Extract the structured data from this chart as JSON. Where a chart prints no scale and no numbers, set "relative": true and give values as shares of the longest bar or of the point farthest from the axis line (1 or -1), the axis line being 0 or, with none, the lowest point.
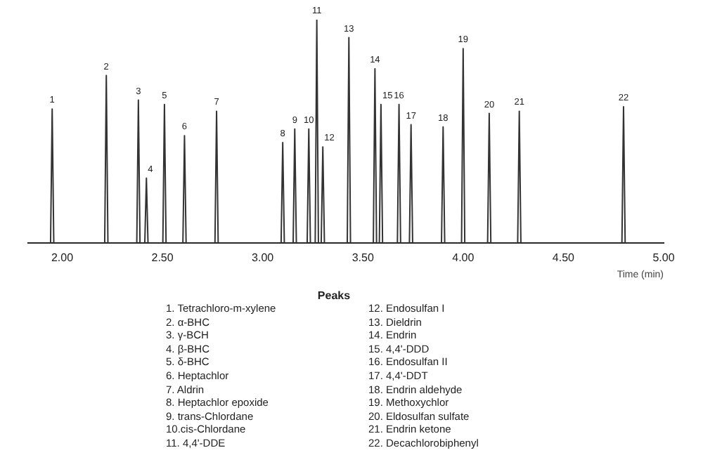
{
  "chart_data": {
    "type": "line",
    "xlabel": "Time (min)",
    "legend_title": "Peaks",
    "relative": true,
    "grid": false,
    "legend": false,
    "marker": "none",
    "color": "#333333",
    "xlim": [
      1.83,
      5.0
    ],
    "xticks": [
      {
        "value": 2,
        "label": "2.00"
      },
      {
        "value": 2.5,
        "label": "2.50"
      },
      {
        "value": 3,
        "label": "3.00"
      },
      {
        "value": 3.5,
        "label": "3.50"
      },
      {
        "value": 4,
        "label": "4.00"
      },
      {
        "value": 4.5,
        "label": "4.50"
      },
      {
        "value": 5,
        "label": "5.00"
      }
    ],
    "x": [
      1.83,
      1.942,
      1.95,
      1.958,
      2.212,
      2.22,
      2.228,
      2.372,
      2.38,
      2.388,
      2.412,
      2.42,
      2.428,
      2.502,
      2.51,
      2.518,
      2.602,
      2.61,
      2.618,
      2.762,
      2.77,
      2.778,
      3.092,
      3.1,
      3.108,
      3.152,
      3.16,
      3.168,
      3.222,
      3.23,
      3.238,
      3.262,
      3.27,
      3.278,
      3.292,
      3.3,
      3.308,
      3.422,
      3.43,
      3.438,
      3.552,
      3.56,
      3.568,
      3.582,
      3.59,
      3.598,
      3.672,
      3.68,
      3.688,
      3.732,
      3.74,
      3.748,
      3.892,
      3.9,
      3.908,
      3.992,
      4,
      4.008,
      4.122,
      4.13,
      4.138,
      4.272,
      4.28,
      4.288,
      4.792,
      4.8,
      4.808,
      5.0
    ],
    "values": [
      0,
      0,
      0.6,
      0,
      0,
      0.75,
      0,
      0,
      0.64,
      0,
      0,
      0.29,
      0,
      0,
      0.62,
      0,
      0,
      0.48,
      0,
      0,
      0.59,
      0,
      0,
      0.45,
      0,
      0,
      0.51,
      0,
      0,
      0.51,
      0,
      0,
      1,
      0,
      0,
      0.43,
      0,
      0,
      0.92,
      0,
      0,
      0.78,
      0,
      0,
      0.62,
      0,
      0,
      0.62,
      0,
      0,
      0.53,
      0,
      0,
      0.52,
      0,
      0,
      0.87,
      0,
      0,
      0.58,
      0,
      0,
      0.59,
      0,
      0,
      0.61,
      0,
      0
    ],
    "annotations": [
      {
        "text": "1",
        "x": 1.95,
        "y": 0.6
      },
      {
        "text": "2",
        "x": 2.22,
        "y": 0.75
      },
      {
        "text": "3",
        "x": 2.38,
        "y": 0.64
      },
      {
        "text": "4",
        "x": 2.42,
        "y": 0.29
      },
      {
        "text": "5",
        "x": 2.51,
        "y": 0.62
      },
      {
        "text": "6",
        "x": 2.61,
        "y": 0.48
      },
      {
        "text": "7",
        "x": 2.77,
        "y": 0.59
      },
      {
        "text": "8",
        "x": 3.1,
        "y": 0.45
      },
      {
        "text": "9",
        "x": 3.16,
        "y": 0.51
      },
      {
        "text": "10",
        "x": 3.23,
        "y": 0.51
      },
      {
        "text": "11",
        "x": 3.27,
        "y": 1
      },
      {
        "text": "12",
        "x": 3.3,
        "y": 0.43
      },
      {
        "text": "13",
        "x": 3.43,
        "y": 0.92
      },
      {
        "text": "14",
        "x": 3.56,
        "y": 0.78
      },
      {
        "text": "15",
        "x": 3.59,
        "y": 0.62
      },
      {
        "text": "16",
        "x": 3.68,
        "y": 0.62
      },
      {
        "text": "17",
        "x": 3.74,
        "y": 0.53
      },
      {
        "text": "18",
        "x": 3.9,
        "y": 0.52
      },
      {
        "text": "19",
        "x": 4,
        "y": 0.87
      },
      {
        "text": "20",
        "x": 4.13,
        "y": 0.58
      },
      {
        "text": "21",
        "x": 4.28,
        "y": 0.59
      },
      {
        "text": "22",
        "x": 4.8,
        "y": 0.61
      },
      "1. Tetrachloro-m-xylene",
      "2. α-BHC",
      "3. γ-BCH",
      "4. β-BHC",
      "5. δ-BHC",
      "6. Heptachlor",
      "7. Aldrin",
      "8. Heptachlor epoxide",
      "9. trans-Chlordane",
      "10.cis-Chlordane",
      "11. 4,4'-DDE",
      "12. Endosulfan I",
      "13. Dieldrin",
      "14. Endrin",
      "15. 4,4'-DDD",
      "16. Endosulfan II",
      "17. 4,4'-DDT",
      "18. Endrin aldehyde",
      "19. Methoxychlor",
      "20. Eldosulfan sulfate",
      "21. Endrin ketone",
      "22. Decachlorobiphenyl"
    ]
  }
}
